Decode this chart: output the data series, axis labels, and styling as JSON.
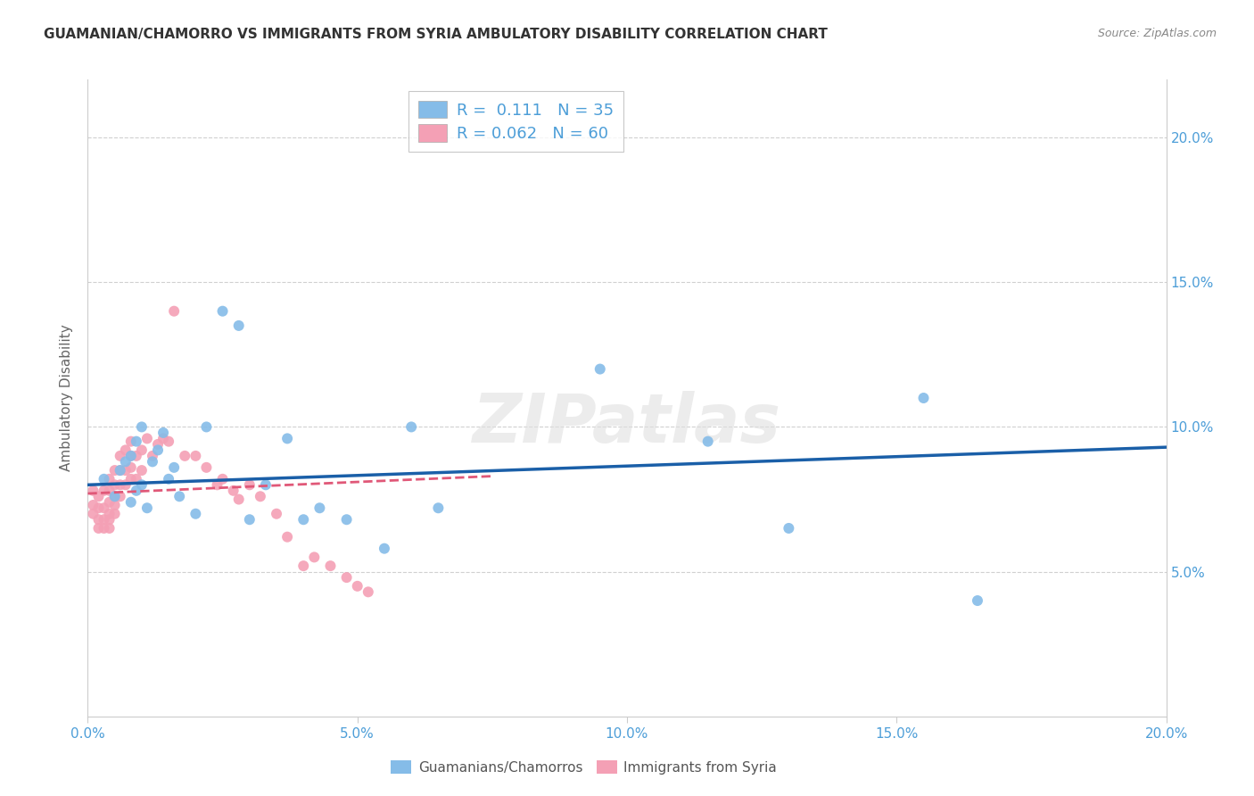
{
  "title": "GUAMANIAN/CHAMORRO VS IMMIGRANTS FROM SYRIA AMBULATORY DISABILITY CORRELATION CHART",
  "source": "Source: ZipAtlas.com",
  "ylabel": "Ambulatory Disability",
  "xlim": [
    0.0,
    0.2
  ],
  "ylim": [
    0.0,
    0.22
  ],
  "x_ticks": [
    0.0,
    0.05,
    0.1,
    0.15,
    0.2
  ],
  "y_ticks": [
    0.05,
    0.1,
    0.15,
    0.2
  ],
  "x_tick_labels": [
    "0.0%",
    "5.0%",
    "10.0%",
    "15.0%",
    "20.0%"
  ],
  "y_tick_labels_right": [
    "5.0%",
    "10.0%",
    "15.0%",
    "20.0%"
  ],
  "legend1_R": "0.111",
  "legend1_N": "35",
  "legend2_R": "0.062",
  "legend2_N": "60",
  "color_blue": "#85bce8",
  "color_pink": "#f4a0b5",
  "line_blue": "#1a5fa8",
  "line_pink": "#e05878",
  "watermark": "ZIPatlas",
  "blue_points_x": [
    0.003,
    0.005,
    0.006,
    0.007,
    0.008,
    0.008,
    0.009,
    0.009,
    0.01,
    0.01,
    0.011,
    0.012,
    0.013,
    0.014,
    0.015,
    0.016,
    0.017,
    0.02,
    0.022,
    0.025,
    0.028,
    0.03,
    0.033,
    0.037,
    0.04,
    0.043,
    0.048,
    0.055,
    0.06,
    0.065,
    0.095,
    0.115,
    0.13,
    0.155,
    0.165
  ],
  "blue_points_y": [
    0.082,
    0.076,
    0.085,
    0.088,
    0.074,
    0.09,
    0.078,
    0.095,
    0.08,
    0.1,
    0.072,
    0.088,
    0.092,
    0.098,
    0.082,
    0.086,
    0.076,
    0.07,
    0.1,
    0.14,
    0.135,
    0.068,
    0.08,
    0.096,
    0.068,
    0.072,
    0.068,
    0.058,
    0.1,
    0.072,
    0.12,
    0.095,
    0.065,
    0.11,
    0.04
  ],
  "pink_points_x": [
    0.001,
    0.001,
    0.001,
    0.002,
    0.002,
    0.002,
    0.002,
    0.003,
    0.003,
    0.003,
    0.003,
    0.004,
    0.004,
    0.004,
    0.004,
    0.004,
    0.004,
    0.005,
    0.005,
    0.005,
    0.005,
    0.005,
    0.006,
    0.006,
    0.006,
    0.006,
    0.007,
    0.007,
    0.007,
    0.008,
    0.008,
    0.008,
    0.008,
    0.009,
    0.009,
    0.01,
    0.01,
    0.011,
    0.012,
    0.013,
    0.014,
    0.015,
    0.016,
    0.018,
    0.02,
    0.022,
    0.024,
    0.025,
    0.027,
    0.028,
    0.03,
    0.032,
    0.035,
    0.037,
    0.04,
    0.042,
    0.045,
    0.048,
    0.05,
    0.052
  ],
  "pink_points_y": [
    0.07,
    0.073,
    0.078,
    0.065,
    0.068,
    0.072,
    0.076,
    0.065,
    0.068,
    0.072,
    0.078,
    0.065,
    0.068,
    0.07,
    0.074,
    0.078,
    0.082,
    0.07,
    0.073,
    0.076,
    0.08,
    0.085,
    0.076,
    0.08,
    0.085,
    0.09,
    0.08,
    0.085,
    0.092,
    0.082,
    0.086,
    0.09,
    0.095,
    0.082,
    0.09,
    0.085,
    0.092,
    0.096,
    0.09,
    0.094,
    0.096,
    0.095,
    0.14,
    0.09,
    0.09,
    0.086,
    0.08,
    0.082,
    0.078,
    0.075,
    0.08,
    0.076,
    0.07,
    0.062,
    0.052,
    0.055,
    0.052,
    0.048,
    0.045,
    0.043
  ],
  "blue_line_x": [
    0.0,
    0.2
  ],
  "blue_line_y": [
    0.08,
    0.093
  ],
  "pink_line_x": [
    0.0,
    0.075
  ],
  "pink_line_y": [
    0.077,
    0.083
  ]
}
